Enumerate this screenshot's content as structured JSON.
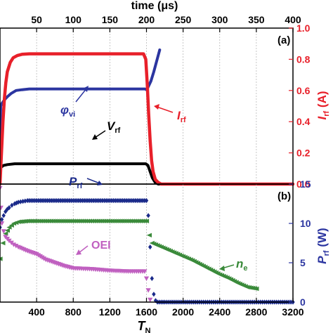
{
  "chart_data": [
    {
      "panel": "(a)",
      "type": "line",
      "top_axis": {
        "title": "time (μs)",
        "range": [
          0,
          400
        ],
        "ticks": [
          "50",
          "100",
          "150",
          "200",
          "250",
          "300",
          "350",
          "400"
        ]
      },
      "right_axis": {
        "title_main": "I",
        "title_sub": "rf",
        "title_unit": " (A)",
        "range": [
          0,
          1.0
        ],
        "ticks": [
          "0.0",
          "0.2",
          "0.4",
          "0.6",
          "0.8",
          "1.0"
        ],
        "color": "#e8202a"
      },
      "grid": true,
      "series": [
        {
          "name": "I_rf",
          "label_main": "I",
          "label_sub": "rf",
          "color": "#e8202a",
          "x": [
            0,
            2,
            4,
            6,
            8,
            10,
            14,
            18,
            24,
            30,
            40,
            60,
            100,
            150,
            190,
            196,
            199,
            201,
            203,
            205,
            207,
            209,
            212,
            216,
            220,
            230,
            260,
            300,
            400
          ],
          "y": [
            0.0,
            0.2,
            0.4,
            0.55,
            0.65,
            0.72,
            0.78,
            0.81,
            0.825,
            0.832,
            0.835,
            0.835,
            0.835,
            0.835,
            0.835,
            0.835,
            0.8,
            0.65,
            0.45,
            0.28,
            0.15,
            0.08,
            0.03,
            0.01,
            0.0,
            0.0,
            0.0,
            0.0,
            0.0
          ]
        },
        {
          "name": "φ_vi",
          "label_main": "φ",
          "label_sub": "vi",
          "color": "#2b35a0",
          "x": [
            0,
            0.5,
            1,
            3,
            6,
            10,
            15,
            22,
            30,
            40,
            60,
            100,
            150,
            190,
            198,
            200,
            202,
            206,
            210,
            214,
            218
          ],
          "y": [
            0.05,
            0.35,
            0.5,
            0.52,
            0.54,
            0.56,
            0.58,
            0.6,
            0.605,
            0.61,
            0.61,
            0.61,
            0.61,
            0.61,
            0.61,
            0.605,
            0.62,
            0.66,
            0.72,
            0.79,
            0.86
          ]
        },
        {
          "name": "V_rf",
          "label_main": "V",
          "label_sub": "rf",
          "color": "#000000",
          "x": [
            0,
            2,
            5,
            10,
            20,
            40,
            100,
            150,
            199,
            202,
            205,
            208,
            212,
            216,
            220,
            400
          ],
          "y": [
            0.1,
            0.11,
            0.12,
            0.125,
            0.13,
            0.13,
            0.13,
            0.13,
            0.13,
            0.12,
            0.08,
            0.04,
            0.01,
            0.0,
            0.0,
            0.0
          ]
        }
      ]
    },
    {
      "panel": "(b)",
      "type": "scatter",
      "bottom_axis": {
        "title_main": "T",
        "title_sub": "N",
        "range": [
          0,
          3200
        ],
        "ticks": [
          "400",
          "800",
          "1200",
          "1600",
          "2000",
          "2400",
          "2800",
          "3200"
        ]
      },
      "right_axis": {
        "title_main": "P",
        "title_sub": "rf",
        "title_unit": " (W)",
        "range": [
          0,
          15
        ],
        "ticks": [
          "0",
          "5",
          "10",
          "15"
        ],
        "color": "#2b35a0"
      },
      "grid": true,
      "series": [
        {
          "name": "P_rf",
          "label_main": "P",
          "label_sub": "rf",
          "color": "#1a2a8a",
          "marker": "diamond",
          "x": [
            0,
            20,
            40,
            60,
            80,
            100,
            130,
            160,
            200,
            250,
            300,
            400,
            500,
            600,
            700,
            800,
            900,
            1000,
            1100,
            1200,
            1300,
            1400,
            1500,
            1600,
            1620,
            1640,
            1660,
            1680,
            1700,
            1720,
            1800,
            2000,
            2200,
            2400,
            2600,
            2800,
            3000,
            3200
          ],
          "y": [
            9.5,
            10.5,
            11.0,
            11.5,
            11.8,
            12.0,
            12.3,
            12.5,
            12.7,
            12.8,
            12.9,
            12.9,
            12.9,
            12.9,
            12.9,
            12.9,
            12.9,
            12.9,
            12.9,
            12.9,
            12.9,
            12.9,
            12.9,
            12.9,
            11.0,
            7.0,
            3.0,
            1.0,
            0.2,
            0.0,
            0.0,
            0.0,
            0.0,
            0.0,
            0.0,
            0.0,
            0.0,
            0.0
          ]
        },
        {
          "name": "n_e",
          "label_main": "n",
          "label_sub": "e",
          "color": "#3a8a3a",
          "marker": "triangle-left",
          "x": [
            0,
            30,
            60,
            100,
            150,
            200,
            300,
            400,
            600,
            800,
            1000,
            1200,
            1400,
            1600,
            1630,
            1660,
            1700,
            1800,
            1900,
            2000,
            2100,
            2200,
            2300,
            2400,
            2500,
            2600,
            2700,
            2800
          ],
          "y": [
            5.5,
            7.5,
            8.7,
            9.5,
            10.0,
            10.2,
            10.3,
            10.3,
            10.3,
            10.3,
            10.3,
            10.3,
            10.3,
            10.3,
            8.5,
            7.5,
            7.3,
            6.8,
            6.3,
            5.8,
            5.3,
            4.7,
            4.1,
            3.5,
            3.0,
            2.4,
            1.9,
            1.7
          ]
        },
        {
          "name": "OEI",
          "label_main": "OEI",
          "color": "#c060c0",
          "marker": "triangle-down",
          "x": [
            0,
            10,
            20,
            40,
            60,
            100,
            150,
            200,
            300,
            400,
            500,
            600,
            700,
            800,
            1000,
            1200,
            1400,
            1580,
            1600,
            1620,
            1640
          ],
          "y": [
            14.5,
            12.0,
            10.0,
            9.0,
            8.3,
            7.8,
            7.3,
            7.0,
            6.5,
            6.1,
            5.4,
            5.0,
            4.6,
            4.3,
            4.2,
            4.0,
            3.9,
            3.9,
            3.0,
            1.5,
            0.3
          ]
        }
      ]
    }
  ]
}
